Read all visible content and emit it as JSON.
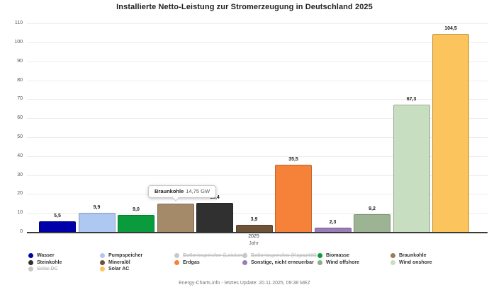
{
  "title": "Installierte Netto-Leistung zur Stromerzeugung in Deutschland 2025",
  "footer": "Energy-Charts.info - letztes Update: 20.11.2025, 09:38 MEZ",
  "tooltip": {
    "series": "Braunkohle",
    "value_text": "14,75 GW"
  },
  "axis": {
    "x_tick": "2025",
    "x_label": "Jahr",
    "y_ticks": [
      0,
      10,
      20,
      30,
      40,
      50,
      60,
      70,
      80,
      90,
      100,
      110
    ]
  },
  "chart_data": {
    "type": "bar",
    "title": "Installierte Netto-Leistung zur Stromerzeugung in Deutschland 2025",
    "xlabel": "Jahr",
    "ylabel": "",
    "ylim": [
      0,
      110
    ],
    "grid": true,
    "unit": "GW",
    "categories": [
      "2025"
    ],
    "series": [
      {
        "name": "Wasser",
        "value": 5.5,
        "label": "5,5",
        "color": "#0000aa",
        "show_label": true
      },
      {
        "name": "Pumpspeicher",
        "value": 9.9,
        "label": "9,9",
        "color": "#aec8f2",
        "show_label": true
      },
      {
        "name": "Biomasse",
        "value": 9.0,
        "label": "9,0",
        "color": "#0a9b3d",
        "show_label": true
      },
      {
        "name": "Braunkohle",
        "value": 14.75,
        "label": "14,75",
        "color": "#a58a69",
        "show_label": false,
        "hovered": true
      },
      {
        "name": "Steinkohle",
        "value": 15.4,
        "label": "15,4",
        "color": "#303030",
        "show_label": true
      },
      {
        "name": "Mineralöl",
        "value": 3.9,
        "label": "3,9",
        "color": "#6f5336",
        "show_label": true
      },
      {
        "name": "Erdgas",
        "value": 35.5,
        "label": "35,5",
        "color": "#f58238",
        "show_label": true
      },
      {
        "name": "Sonstige, nicht erneuerbar",
        "value": 2.3,
        "label": "2,3",
        "color": "#9b7cb8",
        "show_label": true
      },
      {
        "name": "Wind offshore",
        "value": 9.2,
        "label": "9,2",
        "color": "#9cb493",
        "show_label": true
      },
      {
        "name": "Wind onshore",
        "value": 67.3,
        "label": "67,3",
        "color": "#c8dec0",
        "show_label": true
      },
      {
        "name": "Solar AC",
        "value": 104.5,
        "label": "104,5",
        "color": "#fcc45c",
        "show_label": true
      }
    ]
  },
  "legend": {
    "columns": [
      [
        {
          "label": "Wasser",
          "color": "#0000aa",
          "disabled": false
        },
        {
          "label": "Steinkohle",
          "color": "#303030",
          "disabled": false
        },
        {
          "label": "Solar DC",
          "color": "#c8c8c8",
          "disabled": true
        }
      ],
      [
        {
          "label": "Pumpspeicher",
          "color": "#aec8f2",
          "disabled": false
        },
        {
          "label": "Mineralöl",
          "color": "#6f5336",
          "disabled": false
        },
        {
          "label": "Solar AC",
          "color": "#fcc45c",
          "disabled": false
        }
      ],
      [
        {
          "label": "Batteriespeicher (Leistung)",
          "color": "#c8c8c8",
          "disabled": true
        },
        {
          "label": "Erdgas",
          "color": "#f58238",
          "disabled": false
        }
      ],
      [
        {
          "label": "Batteriespeicher (Kapazität)",
          "color": "#c8c8c8",
          "disabled": true
        },
        {
          "label": "Sonstige, nicht erneuerbar",
          "color": "#9b7cb8",
          "disabled": false
        }
      ],
      [
        {
          "label": "Biomasse",
          "color": "#0a9b3d",
          "disabled": false
        },
        {
          "label": "Wind offshore",
          "color": "#8fac85",
          "disabled": false
        }
      ],
      [
        {
          "label": "Braunkohle",
          "color": "#9a7b5c",
          "disabled": false
        },
        {
          "label": "Wind onshore",
          "color": "#c8dec0",
          "disabled": false
        }
      ]
    ]
  }
}
